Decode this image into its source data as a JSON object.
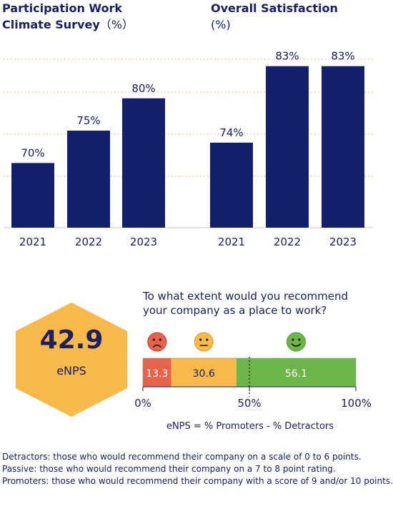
{
  "chart_data": [
    {
      "type": "bar",
      "title_line1": "Participation Work",
      "title_line2_bold": "Climate Survey",
      "title_line2_unit": "（%）",
      "categories": [
        "2021",
        "2022",
        "2023"
      ],
      "values": [
        70,
        75,
        80
      ],
      "value_labels": [
        "70%",
        "75%",
        "80%"
      ],
      "color": "#14206b",
      "ylim": [
        60,
        85
      ],
      "grid": true
    },
    {
      "type": "bar",
      "title_line1": "Overall Satisfaction",
      "title_line2_unit": "(%)",
      "categories": [
        "2021",
        "2022",
        "2023"
      ],
      "values": [
        74,
        83,
        83
      ],
      "value_labels": [
        "74%",
        "83%",
        "83%"
      ],
      "color": "#14206b",
      "ylim": [
        64,
        85
      ],
      "grid": true
    },
    {
      "type": "bar",
      "orientation": "horizontal-stacked",
      "question": [
        "To what extent would you recommend",
        "your company as a place to work?"
      ],
      "segments": [
        {
          "value": 13.3,
          "label": "13.3",
          "color": "#e8624a",
          "icon": "sad-face-icon"
        },
        {
          "value": 30.6,
          "label": "30.6",
          "color": "#f9b84b",
          "icon": "neutral-face-icon"
        },
        {
          "value": 56.1,
          "label": "56.1",
          "color": "#6db546",
          "icon": "happy-face-icon"
        }
      ],
      "ticks": [
        "0%",
        "50%",
        "100%"
      ],
      "xlim": [
        0,
        100
      ],
      "marker_at": 50
    }
  ],
  "enps": {
    "value": "42.9",
    "label": "eNPS",
    "formula": "eNPS = % Promoters - % Detractors",
    "color": "#f9b84b"
  },
  "footnotes": [
    "Detractors: those who would recommend their company on a scale of 0 to 6 points.",
    "Passive: those who would recommend their company on a 7 to 8 point rating.",
    "Promoters: those who would recommend their company with a score of 9 and/or 10 points."
  ]
}
